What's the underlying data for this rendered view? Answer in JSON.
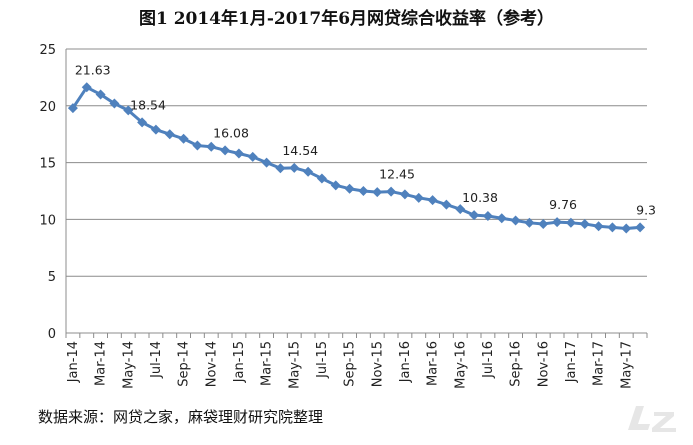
{
  "title": "图1    2014年1月-2017年6月网贷综合收益率（参考）",
  "source_note": "数据来源：网贷之家，麻袋理财研究院整理",
  "chart_data": {
    "type": "line",
    "title": "图1    2014年1月-2017年6月网贷综合收益率（参考）",
    "xlabel": "",
    "ylabel": "",
    "ylim": [
      0,
      25
    ],
    "yticks": [
      0,
      5,
      10,
      15,
      20,
      25
    ],
    "grid": true,
    "legend": "none",
    "color": "#4f81bd",
    "categories": [
      "Jan-14",
      "Feb-14",
      "Mar-14",
      "Apr-14",
      "May-14",
      "Jun-14",
      "Jul-14",
      "Aug-14",
      "Sep-14",
      "Oct-14",
      "Nov-14",
      "Dec-14",
      "Jan-15",
      "Feb-15",
      "Mar-15",
      "Apr-15",
      "May-15",
      "Jun-15",
      "Jul-15",
      "Aug-15",
      "Sep-15",
      "Oct-15",
      "Nov-15",
      "Dec-15",
      "Jan-16",
      "Feb-16",
      "Mar-16",
      "Apr-16",
      "May-16",
      "Jun-16",
      "Jul-16",
      "Aug-16",
      "Sep-16",
      "Oct-16",
      "Nov-16",
      "Dec-16",
      "Jan-17",
      "Feb-17",
      "Mar-17",
      "Apr-17",
      "May-17",
      "Jun-17"
    ],
    "tick_labels": [
      "Jan-14",
      "Mar-14",
      "May-14",
      "Jul-14",
      "Sep-14",
      "Nov-14",
      "Jan-15",
      "Mar-15",
      "May-15",
      "Jul-15",
      "Sep-15",
      "Nov-15",
      "Jan-16",
      "Mar-16",
      "May-16",
      "Jul-16",
      "Sep-16",
      "Nov-16",
      "Jan-17",
      "Mar-17",
      "May-17"
    ],
    "values": [
      19.8,
      21.63,
      21.0,
      20.2,
      19.6,
      18.54,
      17.9,
      17.5,
      17.1,
      16.5,
      16.4,
      16.08,
      15.8,
      15.5,
      15.0,
      14.5,
      14.54,
      14.2,
      13.6,
      13.0,
      12.7,
      12.5,
      12.4,
      12.45,
      12.2,
      11.9,
      11.7,
      11.3,
      10.9,
      10.38,
      10.3,
      10.1,
      9.9,
      9.7,
      9.6,
      9.76,
      9.7,
      9.6,
      9.4,
      9.3,
      9.2,
      9.3
    ],
    "data_labels": [
      {
        "index": 1,
        "text": "21.63"
      },
      {
        "index": 5,
        "text": "18.54"
      },
      {
        "index": 11,
        "text": "16.08"
      },
      {
        "index": 16,
        "text": "14.54"
      },
      {
        "index": 23,
        "text": "12.45"
      },
      {
        "index": 29,
        "text": "10.38"
      },
      {
        "index": 35,
        "text": "9.76"
      },
      {
        "index": 41,
        "text": "9.3"
      }
    ]
  }
}
